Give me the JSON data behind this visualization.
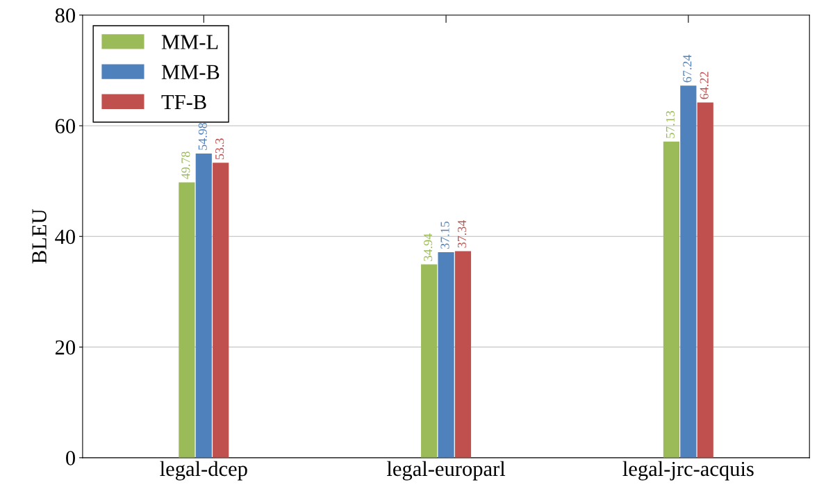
{
  "chart_data": {
    "type": "bar",
    "ylabel": "BLEU",
    "categories": [
      "legal-dcep",
      "legal-europarl",
      "legal-jrc-acquis"
    ],
    "series": [
      {
        "name": "MM-L",
        "color": "#9bbb59",
        "values": [
          49.78,
          34.94,
          57.13
        ]
      },
      {
        "name": "MM-B",
        "color": "#4f81bd",
        "values": [
          54.98,
          37.15,
          67.24
        ]
      },
      {
        "name": "TF-B",
        "color": "#c0504d",
        "values": [
          53.3,
          37.34,
          64.22
        ]
      }
    ],
    "ylim": [
      0,
      80
    ],
    "yticks": [
      0,
      20,
      40,
      60,
      80
    ],
    "grid": "y",
    "legend": "top left",
    "data_labels": true
  }
}
